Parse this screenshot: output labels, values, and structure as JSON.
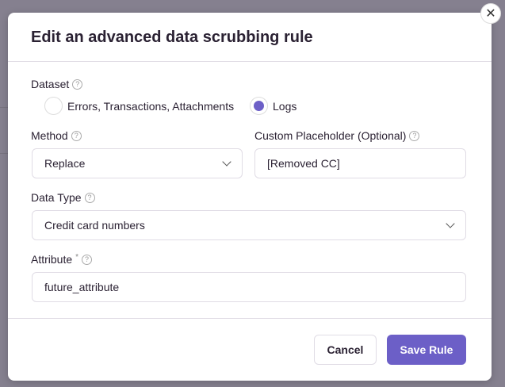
{
  "modal": {
    "title": "Edit an advanced data scrubbing rule",
    "dataset": {
      "label": "Dataset",
      "options": [
        "Errors, Transactions, Attachments",
        "Logs"
      ],
      "selected": "Logs"
    },
    "method": {
      "label": "Method",
      "value": "Replace"
    },
    "placeholder": {
      "label": "Custom Placeholder (Optional)",
      "value": "[Removed CC]"
    },
    "data_type": {
      "label": "Data Type",
      "value": "Credit card numbers"
    },
    "attribute": {
      "label": "Attribute",
      "required_mark": "*",
      "value": "future_attribute"
    },
    "cancel_label": "Cancel",
    "save_label": "Save Rule",
    "help_glyph": "?",
    "close_glyph": "✕",
    "accent_color": "#6c5fc7"
  }
}
